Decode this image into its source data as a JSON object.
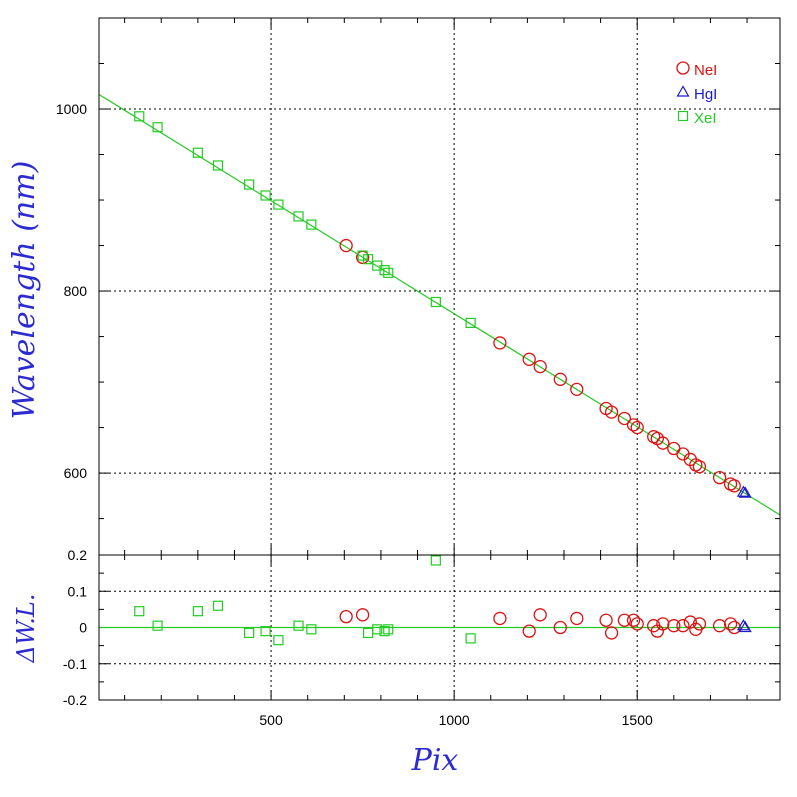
{
  "chart_data": [
    {
      "type": "scatter",
      "panel": "main",
      "xlabel": "",
      "ylabel": "Wavelength (nm)",
      "xlim": [
        30,
        1890
      ],
      "ylim": [
        510,
        1100
      ],
      "x_ticks": [
        500,
        1000,
        1500
      ],
      "x_tick_labels": [
        "",
        "",
        ""
      ],
      "y_ticks": [
        600,
        800,
        1000
      ],
      "y_tick_labels": [
        "600",
        "800",
        "1000"
      ],
      "grid": true,
      "legend_position": "top-right",
      "fit_line": {
        "x": [
          30,
          1890
        ],
        "y": [
          1016,
          554
        ],
        "color": "#22cc22"
      },
      "series": [
        {
          "name": "NeI",
          "marker": "circle",
          "color": "#dd1111",
          "x": [
            705,
            750,
            1125,
            1205,
            1235,
            1290,
            1335,
            1415,
            1430,
            1465,
            1490,
            1500,
            1545,
            1555,
            1570,
            1600,
            1625,
            1645,
            1660,
            1670,
            1725,
            1755,
            1765
          ],
          "y": [
            850,
            837,
            743,
            725,
            717,
            703,
            692,
            671,
            667,
            660,
            653,
            650,
            640,
            638,
            633,
            627,
            621,
            615,
            609,
            607,
            595,
            588,
            586
          ]
        },
        {
          "name": "HgI",
          "marker": "triangle",
          "color": "#1a1acc",
          "x": [
            1790,
            1795
          ],
          "y": [
            579,
            578
          ]
        },
        {
          "name": "XeI",
          "marker": "square",
          "color": "#22cc22",
          "x": [
            140,
            190,
            300,
            355,
            440,
            485,
            520,
            575,
            610,
            750,
            765,
            790,
            810,
            820,
            950,
            1045
          ],
          "y": [
            992,
            980,
            952,
            938,
            917,
            905,
            895,
            882,
            873,
            839,
            835,
            828,
            823,
            820,
            788,
            765
          ]
        }
      ]
    },
    {
      "type": "scatter",
      "panel": "residuals",
      "xlabel": "Pix",
      "ylabel": "ΔW.L.",
      "xlim": [
        30,
        1890
      ],
      "ylim": [
        -0.2,
        0.2
      ],
      "x_ticks": [
        500,
        1000,
        1500
      ],
      "x_tick_labels": [
        "500",
        "1000",
        "1500"
      ],
      "y_ticks": [
        -0.2,
        -0.1,
        0,
        0.1,
        0.2
      ],
      "y_tick_labels": [
        "-0.2",
        "-0.1",
        "0",
        "0.1",
        "0.2"
      ],
      "grid": true,
      "zero_line": {
        "y": 0,
        "color": "#22cc22"
      },
      "series": [
        {
          "name": "NeI",
          "marker": "circle",
          "color": "#dd1111",
          "x": [
            705,
            750,
            1125,
            1205,
            1235,
            1290,
            1335,
            1415,
            1430,
            1465,
            1490,
            1500,
            1545,
            1555,
            1570,
            1600,
            1625,
            1645,
            1660,
            1670,
            1725,
            1755,
            1765
          ],
          "y": [
            0.03,
            0.035,
            0.025,
            -0.01,
            0.035,
            0.0,
            0.025,
            0.02,
            -0.015,
            0.02,
            0.02,
            0.01,
            0.005,
            -0.01,
            0.01,
            0.005,
            0.005,
            0.015,
            -0.005,
            0.01,
            0.005,
            0.01,
            0.0
          ]
        },
        {
          "name": "HgI",
          "marker": "triangle",
          "color": "#1a1acc",
          "x": [
            1790,
            1795
          ],
          "y": [
            0.005,
            0.0
          ]
        },
        {
          "name": "XeI",
          "marker": "square",
          "color": "#22cc22",
          "x": [
            140,
            190,
            300,
            355,
            440,
            485,
            520,
            575,
            610,
            765,
            790,
            810,
            820,
            950,
            1045
          ],
          "y": [
            0.045,
            0.005,
            0.045,
            0.06,
            -0.015,
            -0.01,
            -0.035,
            0.005,
            -0.005,
            -0.015,
            -0.005,
            -0.01,
            -0.005,
            0.185,
            -0.03
          ]
        }
      ]
    }
  ],
  "legend": {
    "items": [
      {
        "label": "NeI",
        "marker": "circle",
        "color": "#dd1111"
      },
      {
        "label": "HgI",
        "marker": "triangle",
        "color": "#1a1acc"
      },
      {
        "label": "XeI",
        "marker": "square",
        "color": "#22cc22"
      }
    ]
  }
}
